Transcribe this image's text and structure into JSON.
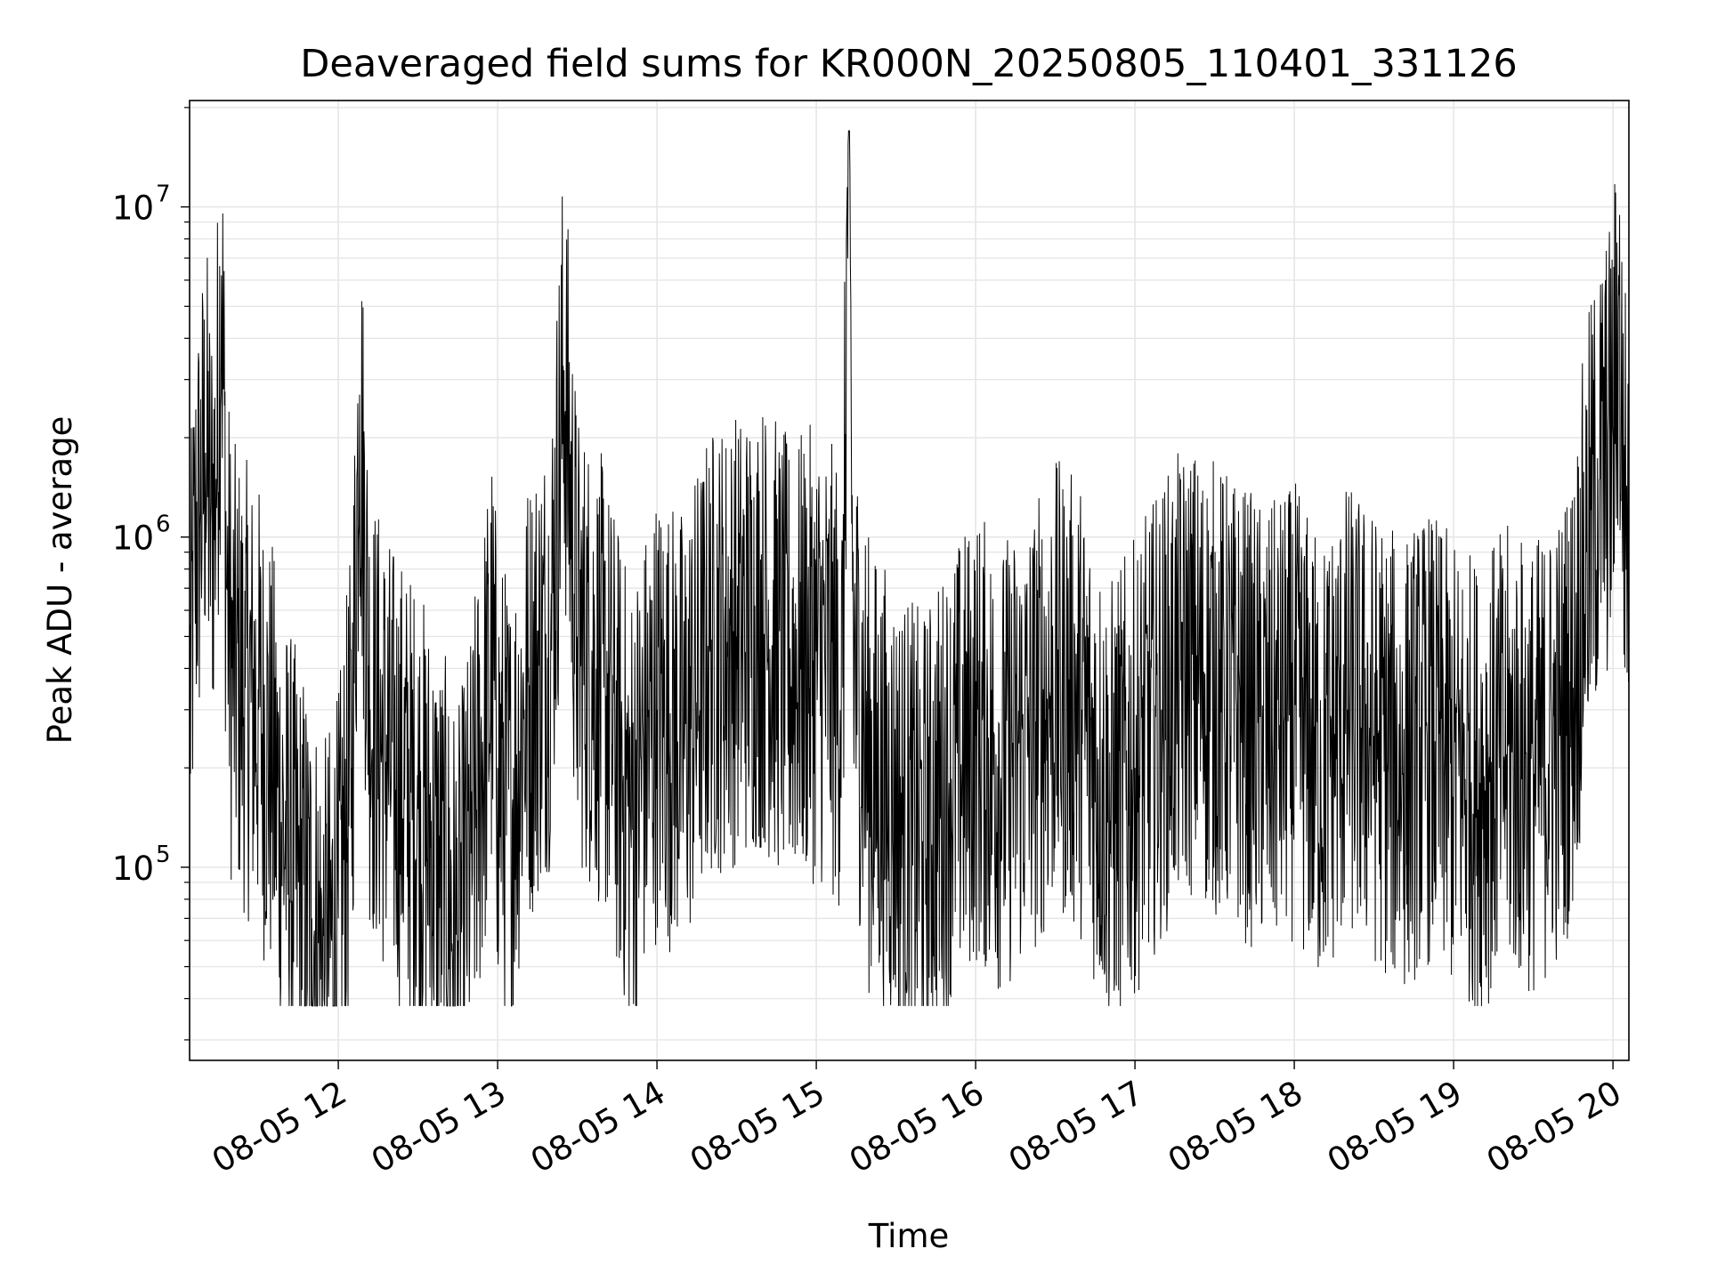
{
  "chart_data": {
    "type": "line",
    "title": "Deaveraged field sums for KR000N_20250805_110401_331126",
    "xlabel": "Time",
    "ylabel": "Peak ADU - average",
    "yscale": "log",
    "ylim": [
      26000,
      21000000
    ],
    "xlim": [
      "08-05 11:04",
      "08-05 20:06"
    ],
    "grid": true,
    "line_color": "#000000",
    "x_ticks": [
      {
        "value": "08-05 12:00",
        "label": "08-05 12"
      },
      {
        "value": "08-05 13:00",
        "label": "08-05 13"
      },
      {
        "value": "08-05 14:00",
        "label": "08-05 14"
      },
      {
        "value": "08-05 15:00",
        "label": "08-05 15"
      },
      {
        "value": "08-05 16:00",
        "label": "08-05 16"
      },
      {
        "value": "08-05 17:00",
        "label": "08-05 17"
      },
      {
        "value": "08-05 18:00",
        "label": "08-05 18"
      },
      {
        "value": "08-05 19:00",
        "label": "08-05 19"
      },
      {
        "value": "08-05 20:00",
        "label": "08-05 20"
      }
    ],
    "y_ticks": [
      {
        "value": 100000,
        "base": "10",
        "exp": "5"
      },
      {
        "value": 1000000,
        "base": "10",
        "exp": "6"
      },
      {
        "value": 10000000,
        "base": "10",
        "exp": "7"
      }
    ],
    "series": [
      {
        "points": [
          [
            "08-05 11:04",
            300000
          ],
          [
            "08-05 11:06",
            900000
          ],
          [
            "08-05 11:08",
            1200000
          ],
          [
            "08-05 11:10",
            1800000
          ],
          [
            "08-05 11:12",
            1100000
          ],
          [
            "08-05 11:14",
            1500000
          ],
          [
            "08-05 11:16",
            6200000
          ],
          [
            "08-05 11:18",
            700000
          ],
          [
            "08-05 11:20",
            400000
          ],
          [
            "08-05 11:25",
            350000
          ],
          [
            "08-05 11:30",
            300000
          ],
          [
            "08-05 11:35",
            200000
          ],
          [
            "08-05 11:40",
            120000
          ],
          [
            "08-05 11:45",
            90000
          ],
          [
            "08-05 11:50",
            70000
          ],
          [
            "08-05 11:55",
            50000
          ],
          [
            "08-05 12:00",
            70000
          ],
          [
            "08-05 12:05",
            200000
          ],
          [
            "08-05 12:08",
            2700000
          ],
          [
            "08-05 12:12",
            300000
          ],
          [
            "08-05 12:20",
            200000
          ],
          [
            "08-05 12:30",
            150000
          ],
          [
            "08-05 12:40",
            90000
          ],
          [
            "08-05 12:45",
            60000
          ],
          [
            "08-05 12:50",
            110000
          ],
          [
            "08-05 12:58",
            400000
          ],
          [
            "08-05 13:00",
            200000
          ],
          [
            "08-05 13:05",
            150000
          ],
          [
            "08-05 13:10",
            300000
          ],
          [
            "08-05 13:20",
            500000
          ],
          [
            "08-05 13:25",
            3200000
          ],
          [
            "08-05 13:30",
            500000
          ],
          [
            "08-05 13:40",
            350000
          ],
          [
            "08-05 13:50",
            150000
          ],
          [
            "08-05 14:00",
            300000
          ],
          [
            "08-05 14:10",
            250000
          ],
          [
            "08-05 14:20",
            450000
          ],
          [
            "08-05 14:30",
            500000
          ],
          [
            "08-05 14:40",
            550000
          ],
          [
            "08-05 14:50",
            400000
          ],
          [
            "08-05 15:00",
            450000
          ],
          [
            "08-05 15:10",
            350000
          ],
          [
            "08-05 15:12",
            15500000
          ],
          [
            "08-05 15:14",
            450000
          ],
          [
            "08-05 15:20",
            200000
          ],
          [
            "08-05 15:30",
            150000
          ],
          [
            "08-05 15:40",
            120000
          ],
          [
            "08-05 15:50",
            180000
          ],
          [
            "08-05 16:00",
            250000
          ],
          [
            "08-05 16:10",
            200000
          ],
          [
            "08-05 16:20",
            250000
          ],
          [
            "08-05 16:30",
            350000
          ],
          [
            "08-05 16:40",
            300000
          ],
          [
            "08-05 16:50",
            150000
          ],
          [
            "08-05 17:00",
            200000
          ],
          [
            "08-05 17:10",
            300000
          ],
          [
            "08-05 17:20",
            400000
          ],
          [
            "08-05 17:30",
            350000
          ],
          [
            "08-05 17:40",
            300000
          ],
          [
            "08-05 17:50",
            250000
          ],
          [
            "08-05 18:00",
            300000
          ],
          [
            "08-05 18:10",
            200000
          ],
          [
            "08-05 18:20",
            300000
          ],
          [
            "08-05 18:30",
            250000
          ],
          [
            "08-05 18:40",
            200000
          ],
          [
            "08-05 18:50",
            250000
          ],
          [
            "08-05 19:00",
            200000
          ],
          [
            "08-05 19:10",
            180000
          ],
          [
            "08-05 19:20",
            220000
          ],
          [
            "08-05 19:30",
            200000
          ],
          [
            "08-05 19:40",
            250000
          ],
          [
            "08-05 19:45",
            350000
          ],
          [
            "08-05 19:50",
            900000
          ],
          [
            "08-05 19:55",
            1500000
          ],
          [
            "08-05 20:00",
            2000000
          ],
          [
            "08-05 20:02",
            4800000
          ],
          [
            "08-05 20:04",
            1500000
          ],
          [
            "08-05 20:06",
            1000000
          ]
        ]
      }
    ]
  }
}
